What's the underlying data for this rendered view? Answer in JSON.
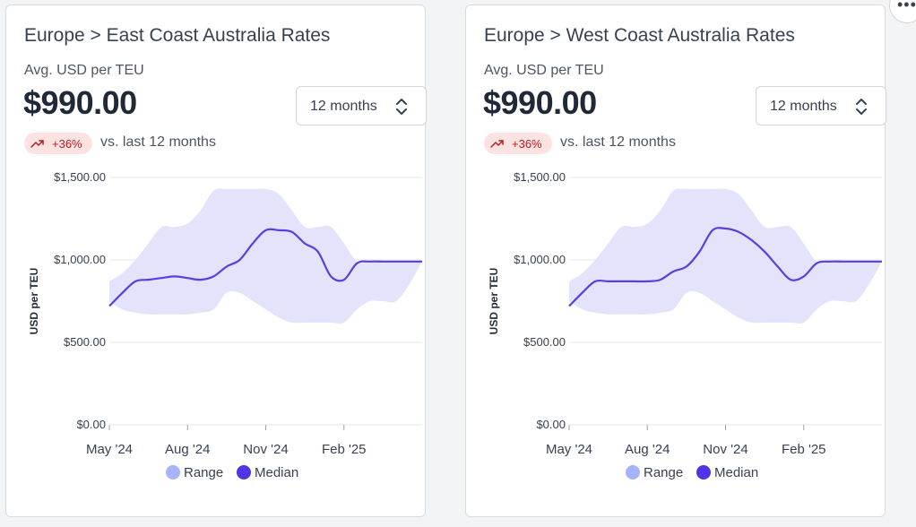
{
  "cards": [
    {
      "title": "Europe > East Coast Australia Rates",
      "subtitle": "Avg. USD per TEU",
      "price": "$990.00",
      "period_select": {
        "value": "12 months",
        "icon": "chevron-up-down-icon"
      },
      "badge": {
        "text": "+36%",
        "icon": "trending-up-icon"
      },
      "comparison": "vs. last 12 months",
      "chart_data": {
        "type": "area",
        "ylabel": "USD per TEU",
        "ylim": [
          0,
          1500
        ],
        "y_ticks": [
          "$1,500.00",
          "$1,000.00",
          "$500.00",
          "$0.00"
        ],
        "x_ticks": [
          "May '24",
          "Aug '24",
          "Nov '24",
          "Feb '25"
        ],
        "x_tick_index": [
          0,
          3,
          6,
          9
        ],
        "x": [
          0,
          0.5,
          1,
          1.5,
          2,
          2.5,
          3,
          3.5,
          4,
          4.5,
          5,
          5.5,
          6,
          6.5,
          7,
          7.5,
          8,
          8.5,
          9,
          9.5,
          10,
          10.5,
          11,
          11.5,
          12
        ],
        "legend": [
          "Range",
          "Median"
        ],
        "series": [
          {
            "name": "Range",
            "type": "band",
            "low": [
              750,
              700,
              680,
              670,
              670,
              670,
              670,
              680,
              700,
              800,
              800,
              750,
              700,
              650,
              620,
              620,
              620,
              620,
              620,
              700,
              750,
              750,
              750,
              850,
              990
            ],
            "high": [
              870,
              920,
              1000,
              1100,
              1200,
              1200,
              1220,
              1300,
              1420,
              1430,
              1430,
              1430,
              1430,
              1400,
              1300,
              1200,
              1200,
              1200,
              1100,
              990,
              990,
              990,
              990,
              990,
              990
            ]
          },
          {
            "name": "Median",
            "type": "line",
            "values": [
              720,
              800,
              870,
              880,
              890,
              900,
              890,
              880,
              900,
              960,
              1000,
              1100,
              1180,
              1180,
              1170,
              1100,
              1050,
              900,
              880,
              980,
              990,
              990,
              990,
              990,
              990
            ]
          }
        ]
      }
    },
    {
      "title": "Europe > West Coast Australia Rates",
      "subtitle": "Avg. USD per TEU",
      "price": "$990.00",
      "period_select": {
        "value": "12 months",
        "icon": "chevron-up-down-icon"
      },
      "badge": {
        "text": "+36%",
        "icon": "trending-up-icon"
      },
      "comparison": "vs. last 12 months",
      "chart_data": {
        "type": "area",
        "ylabel": "USD per TEU",
        "ylim": [
          0,
          1500
        ],
        "y_ticks": [
          "$1,500.00",
          "$1,000.00",
          "$500.00",
          "$0.00"
        ],
        "x_ticks": [
          "May '24",
          "Aug '24",
          "Nov '24",
          "Feb '25"
        ],
        "x_tick_index": [
          0,
          3,
          6,
          9
        ],
        "x": [
          0,
          0.5,
          1,
          1.5,
          2,
          2.5,
          3,
          3.5,
          4,
          4.5,
          5,
          5.5,
          6,
          6.5,
          7,
          7.5,
          8,
          8.5,
          9,
          9.5,
          10,
          10.5,
          11,
          11.5,
          12
        ],
        "legend": [
          "Range",
          "Median"
        ],
        "series": [
          {
            "name": "Range",
            "type": "band",
            "low": [
              750,
              700,
              680,
              670,
              670,
              670,
              670,
              680,
              700,
              800,
              800,
              750,
              700,
              650,
              620,
              620,
              620,
              620,
              620,
              700,
              750,
              750,
              750,
              850,
              990
            ],
            "high": [
              870,
              920,
              1000,
              1100,
              1200,
              1200,
              1220,
              1300,
              1420,
              1430,
              1430,
              1430,
              1430,
              1400,
              1300,
              1200,
              1200,
              1200,
              1100,
              990,
              990,
              990,
              990,
              990,
              990
            ]
          },
          {
            "name": "Median",
            "type": "line",
            "values": [
              720,
              800,
              870,
              870,
              870,
              870,
              870,
              880,
              930,
              960,
              1050,
              1180,
              1190,
              1170,
              1120,
              1050,
              960,
              880,
              900,
              980,
              990,
              990,
              990,
              990,
              990
            ]
          }
        ]
      }
    }
  ],
  "colors": {
    "range": "#e3e4fb",
    "median": "#5b3ee0",
    "range_legend": "#a5b4fc",
    "median_legend": "#4f35e6",
    "grid": "#e5e7eb"
  },
  "more_button": {
    "icon": "more-horizontal-icon",
    "glyph": "•••"
  }
}
